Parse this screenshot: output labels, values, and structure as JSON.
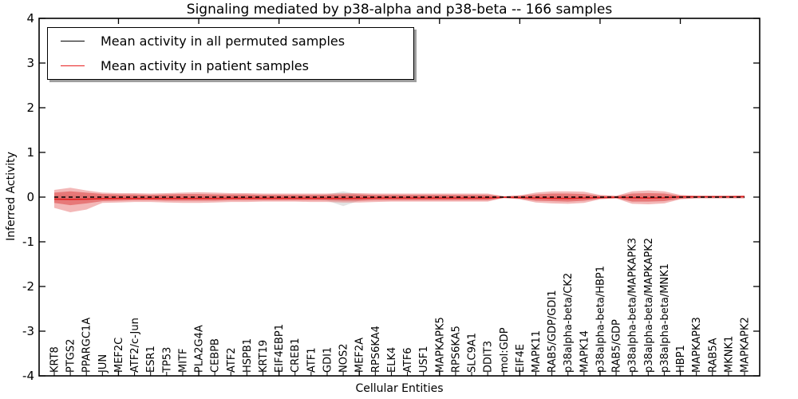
{
  "title": "Signaling mediated by p38-alpha and p38-beta -- 166 samples",
  "legend": {
    "items": [
      {
        "label": "Mean activity in all permuted samples",
        "color": "#000000"
      },
      {
        "label": "Mean activity in patient samples",
        "color": "#e82222"
      }
    ]
  },
  "axes": {
    "xlabel": "Cellular Entities",
    "ylabel": "Inferred Activity",
    "yticks": [
      4,
      3,
      2,
      1,
      0,
      -1,
      -2,
      -3,
      -4
    ],
    "ylim": [
      -4,
      4
    ]
  },
  "colors": {
    "patient_line": "#e02020",
    "permuted_line": "#000000",
    "band_outer": "#e87272",
    "band_inner": "#dd4444",
    "band_permuted": "#cccccc"
  },
  "chart_data": {
    "type": "line",
    "title": "Signaling mediated by p38-alpha and p38-beta -- 166 samples",
    "xlabel": "Cellular Entities",
    "ylabel": "Inferred Activity",
    "ylim": [
      -4,
      4
    ],
    "legend_position": "upper left",
    "grid": false,
    "categories": [
      "KRT8",
      "PTGS2",
      "PPARGC1A",
      "JUN",
      "MEF2C",
      "ATF2/c-Jun",
      "ESR1",
      "TP53",
      "MITF",
      "PLA2G4A",
      "CEBPB",
      "ATF2",
      "HSPB1",
      "KRT19",
      "EIF4EBP1",
      "CREB1",
      "ATF1",
      "GDI1",
      "NOS2",
      "MEF2A",
      "RPS6KA4",
      "ELK4",
      "ATF6",
      "USF1",
      "MAPKAPK5",
      "RPS6KA5",
      "SLC9A1",
      "DDIT3",
      "mol:GDP",
      "EIF4E",
      "MAPK11",
      "RAB5/GDP/GDI1",
      "p38alpha-beta/CK2",
      "MAPK14",
      "p38alpha-beta/HBP1",
      "RAB5/GDP",
      "p38alpha-beta/MAPKAPK3",
      "p38alpha-beta/MAPKAPK2",
      "p38alpha-beta/MNK1",
      "HBP1",
      "MAPKAPK3",
      "RAB5A",
      "MKNK1",
      "MAPKAPK2"
    ],
    "series": [
      {
        "name": "Mean activity in all permuted samples",
        "values": [
          0,
          0,
          0,
          0,
          0,
          0,
          0,
          0,
          0,
          0,
          0,
          0,
          0,
          0,
          0,
          0,
          0,
          0,
          0,
          0,
          0,
          0,
          0,
          0,
          0,
          0,
          0,
          0,
          0,
          0,
          0,
          0,
          0,
          0,
          0,
          0,
          0,
          0,
          0,
          0,
          0,
          0,
          0,
          0
        ]
      },
      {
        "name": "Mean activity in patient samples",
        "values": [
          -0.045,
          -0.05,
          -0.045,
          -0.035,
          -0.03,
          -0.03,
          -0.03,
          -0.03,
          -0.03,
          -0.03,
          -0.03,
          -0.025,
          -0.025,
          -0.025,
          -0.025,
          -0.025,
          -0.025,
          -0.025,
          -0.03,
          -0.025,
          -0.02,
          -0.02,
          -0.02,
          -0.02,
          -0.02,
          -0.02,
          -0.02,
          -0.02,
          -0.005,
          -0.01,
          -0.02,
          -0.025,
          -0.03,
          -0.02,
          -0.01,
          -0.005,
          -0.015,
          -0.02,
          -0.015,
          0.005,
          0.01,
          0.01,
          0.01,
          0.015
        ]
      }
    ],
    "bands": [
      {
        "name": "permuted-range",
        "top": [
          0.04,
          0.05,
          0.04,
          0.03,
          0.03,
          0.03,
          0.03,
          0.03,
          0.03,
          0.03,
          0.03,
          0.03,
          0.03,
          0.03,
          0.03,
          0.03,
          0.03,
          0.06,
          0.13,
          0.06,
          0.03,
          0.03,
          0.03,
          0.03,
          0.03,
          0.03,
          0.03,
          0.03,
          0.02,
          0.02,
          0.03,
          0.03,
          0.03,
          0.03,
          0.02,
          0.02,
          0.03,
          0.03,
          0.03,
          0.025,
          0.025,
          0.025,
          0.025,
          0.025
        ],
        "bottom": [
          -0.05,
          -0.06,
          -0.05,
          -0.04,
          -0.03,
          -0.03,
          -0.03,
          -0.03,
          -0.03,
          -0.03,
          -0.03,
          -0.03,
          -0.03,
          -0.03,
          -0.03,
          -0.03,
          -0.03,
          -0.08,
          -0.2,
          -0.08,
          -0.03,
          -0.03,
          -0.03,
          -0.03,
          -0.03,
          -0.03,
          -0.03,
          -0.03,
          -0.02,
          -0.02,
          -0.03,
          -0.03,
          -0.03,
          -0.03,
          -0.02,
          -0.02,
          -0.03,
          -0.03,
          -0.03,
          -0.025,
          -0.025,
          -0.025,
          -0.025,
          -0.025
        ]
      },
      {
        "name": "patient-outer",
        "top": [
          0.16,
          0.21,
          0.15,
          0.1,
          0.09,
          0.09,
          0.08,
          0.09,
          0.1,
          0.11,
          0.1,
          0.09,
          0.09,
          0.08,
          0.08,
          0.08,
          0.08,
          0.08,
          0.09,
          0.09,
          0.08,
          0.08,
          0.08,
          0.08,
          0.08,
          0.08,
          0.08,
          0.08,
          0.02,
          0.04,
          0.1,
          0.13,
          0.13,
          0.12,
          0.05,
          0.03,
          0.13,
          0.15,
          0.13,
          0.05,
          0.03,
          0.03,
          0.03,
          0.03
        ],
        "bottom": [
          -0.24,
          -0.34,
          -0.28,
          -0.13,
          -0.12,
          -0.11,
          -0.11,
          -0.12,
          -0.13,
          -0.13,
          -0.12,
          -0.11,
          -0.11,
          -0.1,
          -0.1,
          -0.1,
          -0.11,
          -0.11,
          -0.12,
          -0.12,
          -0.11,
          -0.1,
          -0.1,
          -0.1,
          -0.1,
          -0.1,
          -0.1,
          -0.1,
          -0.02,
          -0.05,
          -0.12,
          -0.14,
          -0.15,
          -0.13,
          -0.05,
          -0.03,
          -0.15,
          -0.16,
          -0.14,
          -0.05,
          -0.03,
          -0.03,
          -0.03,
          -0.03
        ]
      },
      {
        "name": "patient-inner",
        "top": [
          0.1,
          0.13,
          0.1,
          0.07,
          0.06,
          0.06,
          0.05,
          0.06,
          0.07,
          0.07,
          0.06,
          0.06,
          0.06,
          0.05,
          0.05,
          0.05,
          0.05,
          0.05,
          0.06,
          0.06,
          0.05,
          0.05,
          0.05,
          0.05,
          0.05,
          0.05,
          0.05,
          0.05,
          0.015,
          0.03,
          0.06,
          0.08,
          0.08,
          0.07,
          0.03,
          0.02,
          0.08,
          0.09,
          0.08,
          0.03,
          0.02,
          0.02,
          0.02,
          0.02
        ],
        "bottom": [
          -0.13,
          -0.18,
          -0.14,
          -0.09,
          -0.08,
          -0.07,
          -0.07,
          -0.08,
          -0.08,
          -0.08,
          -0.08,
          -0.07,
          -0.07,
          -0.07,
          -0.07,
          -0.07,
          -0.07,
          -0.07,
          -0.08,
          -0.08,
          -0.07,
          -0.07,
          -0.07,
          -0.07,
          -0.07,
          -0.07,
          -0.07,
          -0.07,
          -0.015,
          -0.035,
          -0.08,
          -0.09,
          -0.1,
          -0.08,
          -0.035,
          -0.02,
          -0.1,
          -0.1,
          -0.09,
          -0.035,
          -0.02,
          -0.02,
          -0.02,
          -0.02
        ]
      }
    ],
    "x_major_tick_indices": [
      4,
      9,
      14,
      19,
      24,
      29,
      34,
      39
    ]
  }
}
